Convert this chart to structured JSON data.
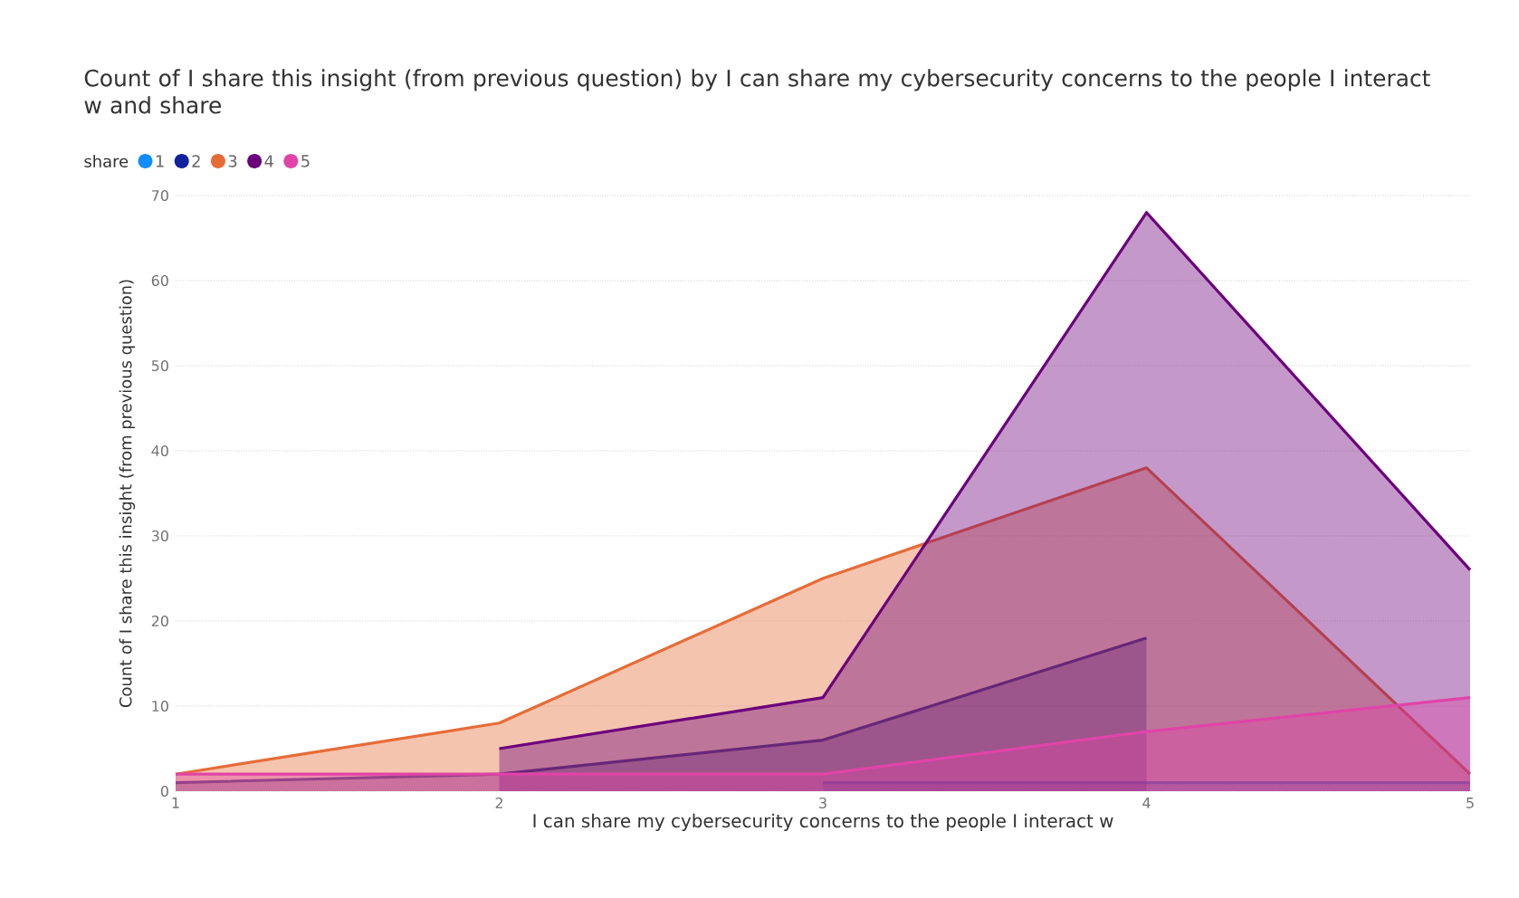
{
  "chart_data": {
    "type": "area",
    "title": "Count of I share this insight (from previous question) by I can share my cybersecurity concerns to the people I interact w and share",
    "xlabel": "I can share my cybersecurity concerns to the people I interact w",
    "ylabel": "Count of I share this insight (from previous question)",
    "legend_title": "share",
    "x": [
      1,
      2,
      3,
      4,
      5
    ],
    "series": [
      {
        "name": "1",
        "color": "#118dff",
        "values": [
          null,
          null,
          1,
          1,
          1
        ]
      },
      {
        "name": "2",
        "color": "#12239e",
        "values": [
          1,
          2,
          6,
          18,
          null
        ]
      },
      {
        "name": "3",
        "color": "#e66c37",
        "values": [
          2,
          8,
          25,
          38,
          2
        ]
      },
      {
        "name": "4",
        "color": "#6b007b",
        "values": [
          null,
          5,
          11,
          68,
          26
        ]
      },
      {
        "name": "5",
        "color": "#e044a7",
        "values": [
          2,
          2,
          2,
          7,
          11
        ]
      }
    ],
    "xlim": [
      1,
      5
    ],
    "xticks": [
      1,
      2,
      3,
      4,
      5
    ],
    "ylim": [
      0,
      70
    ],
    "yticks": [
      0,
      10,
      20,
      30,
      40,
      50,
      60,
      70
    ],
    "grid": "y",
    "legend": "top left"
  }
}
